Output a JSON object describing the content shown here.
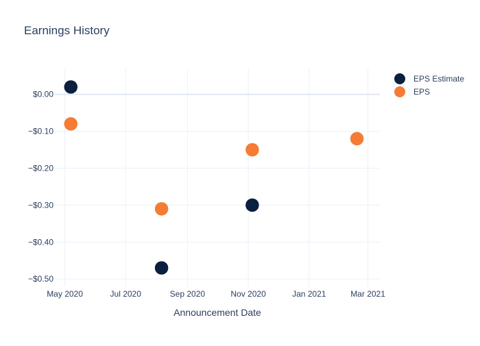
{
  "chart_data": {
    "type": "scatter",
    "title": "Earnings History",
    "xlabel": "Announcement Date",
    "ylabel": "",
    "x_ticks": [
      {
        "date": "2020-05-01",
        "label": "May 2020"
      },
      {
        "date": "2020-07-01",
        "label": "Jul 2020"
      },
      {
        "date": "2020-09-01",
        "label": "Sep 2020"
      },
      {
        "date": "2020-11-01",
        "label": "Nov 2020"
      },
      {
        "date": "2021-01-01",
        "label": "Jan 2021"
      },
      {
        "date": "2021-03-01",
        "label": "Mar 2021"
      }
    ],
    "y_ticks": [
      {
        "value": 0.0,
        "label": "$0.00"
      },
      {
        "value": -0.1,
        "label": "−$0.10"
      },
      {
        "value": -0.2,
        "label": "−$0.20"
      },
      {
        "value": -0.3,
        "label": "−$0.30"
      },
      {
        "value": -0.4,
        "label": "−$0.40"
      },
      {
        "value": -0.5,
        "label": "−$0.50"
      }
    ],
    "xlim": [
      "2020-04-21",
      "2021-03-13"
    ],
    "ylim": [
      -0.52,
      0.07
    ],
    "grid": true,
    "legend_position": "top-right",
    "series": [
      {
        "name": "EPS Estimate",
        "color": "#0b1f3f",
        "points": [
          {
            "x": "2020-05-07",
            "y": 0.02
          },
          {
            "x": "2020-08-06",
            "y": -0.47
          },
          {
            "x": "2020-11-05",
            "y": -0.3
          },
          {
            "x": "2021-02-18",
            "y": -0.12
          }
        ]
      },
      {
        "name": "EPS",
        "color": "#f47c34",
        "points": [
          {
            "x": "2020-05-07",
            "y": -0.08
          },
          {
            "x": "2020-08-06",
            "y": -0.31
          },
          {
            "x": "2020-11-05",
            "y": -0.15
          },
          {
            "x": "2021-02-18",
            "y": -0.12
          }
        ]
      }
    ]
  }
}
